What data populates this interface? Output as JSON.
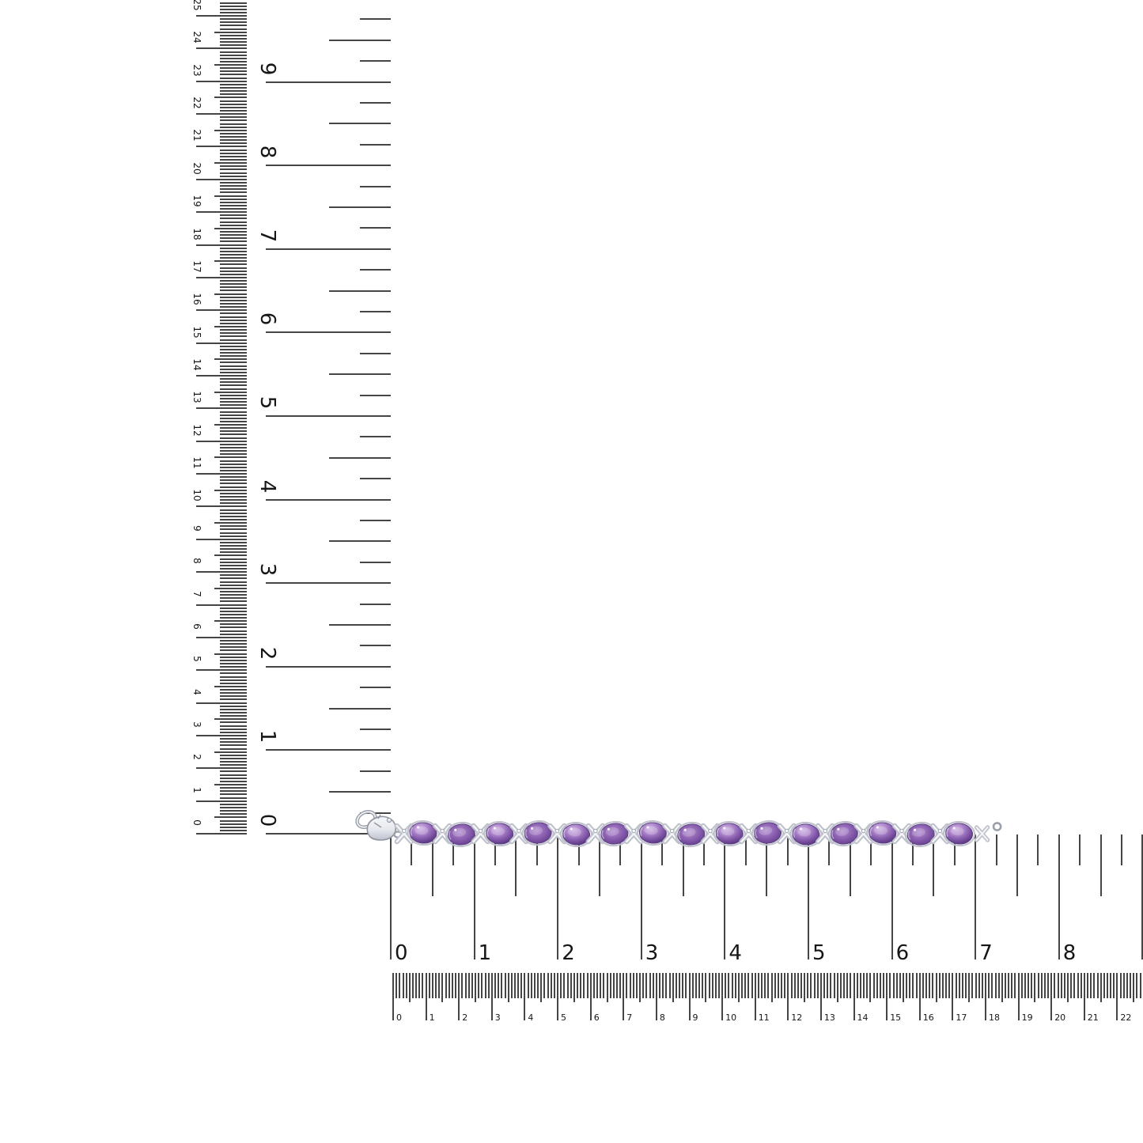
{
  "page": {
    "background": "#ffffff",
    "description": "Amethyst tennis bracelet product photo laid along measurement rulers"
  },
  "rulers": {
    "tick_color": "#454545",
    "band_tick_color": "#4a4a4a",
    "number_color": "#161616",
    "left_cm_scale": {
      "labels": [
        "0",
        "1",
        "2",
        "3",
        "4",
        "5",
        "6",
        "7",
        "8",
        "9",
        "10",
        "11",
        "12",
        "13",
        "14",
        "15",
        "16",
        "17",
        "18",
        "19",
        "20",
        "21",
        "22",
        "23",
        "24",
        "25"
      ]
    },
    "left_inch_scale": {
      "labels": [
        "0",
        "1",
        "2",
        "3",
        "4",
        "5",
        "6",
        "7",
        "8",
        "9"
      ]
    },
    "bottom_inch_scale": {
      "labels": [
        "0",
        "1",
        "2",
        "3",
        "4",
        "5",
        "6",
        "7",
        "8"
      ]
    },
    "bottom_cm_scale": {
      "labels": [
        "0",
        "1",
        "2",
        "3",
        "4",
        "5",
        "6",
        "7",
        "8",
        "9",
        "10",
        "11",
        "12",
        "13",
        "14",
        "15",
        "16",
        "17",
        "18",
        "19",
        "20",
        "21",
        "22"
      ]
    }
  },
  "bracelet": {
    "kind": "amethyst-oval-stone-tennis-bracelet-with-lobster-clasp",
    "stone_count": 15,
    "stone_colors": {
      "highlight": "#cfb3e4",
      "light": "#b28cce",
      "mid": "#8a5fb0",
      "deep": "#66408e",
      "edge": "#4c2c6e",
      "outline": "#5e4383"
    },
    "metal_colors": {
      "white": "#f6f7f9",
      "light": "#e6e8ee",
      "mid": "#bfc1cc",
      "shadow": "#9aa0aa",
      "outline": "#8f95a0"
    }
  }
}
